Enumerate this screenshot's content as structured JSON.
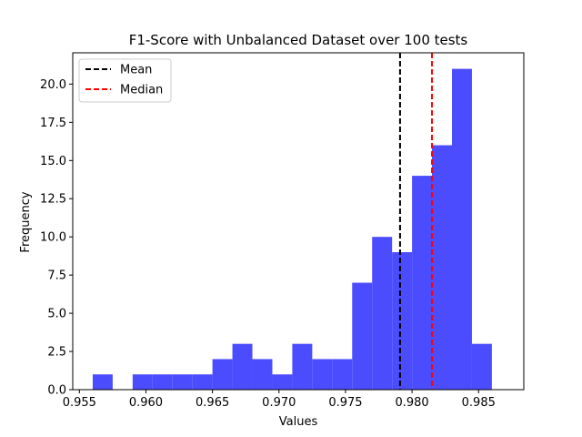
{
  "chart_data": {
    "type": "bar",
    "title": "F1-Score with Unbalanced Dataset over 100 tests",
    "xlabel": "Values",
    "ylabel": "Frequency",
    "bin_start": 0.956,
    "bin_width": 0.0015,
    "counts": [
      1,
      0,
      1,
      1,
      1,
      1,
      2,
      3,
      2,
      1,
      3,
      2,
      2,
      7,
      10,
      9,
      14,
      16,
      21,
      3
    ],
    "bar_color": "#4c4cff",
    "xlim": [
      0.9545,
      0.9884
    ],
    "ylim": [
      0,
      22.05
    ],
    "x_ticks": [
      0.955,
      0.96,
      0.965,
      0.97,
      0.975,
      0.98,
      0.985
    ],
    "x_tick_labels": [
      "0.955",
      "0.960",
      "0.965",
      "0.970",
      "0.975",
      "0.980",
      "0.985"
    ],
    "y_ticks": [
      0,
      2.5,
      5,
      7.5,
      10,
      12.5,
      15,
      17.5,
      20
    ],
    "y_tick_labels": [
      "0.0",
      "2.5",
      "5.0",
      "7.5",
      "10.0",
      "12.5",
      "15.0",
      "17.5",
      "20.0"
    ],
    "lines": [
      {
        "name": "Mean",
        "x": 0.9791,
        "color": "#000000"
      },
      {
        "name": "Median",
        "x": 0.9815,
        "color": "#ff0000"
      }
    ],
    "legend_position": "top-left",
    "grid": false
  }
}
